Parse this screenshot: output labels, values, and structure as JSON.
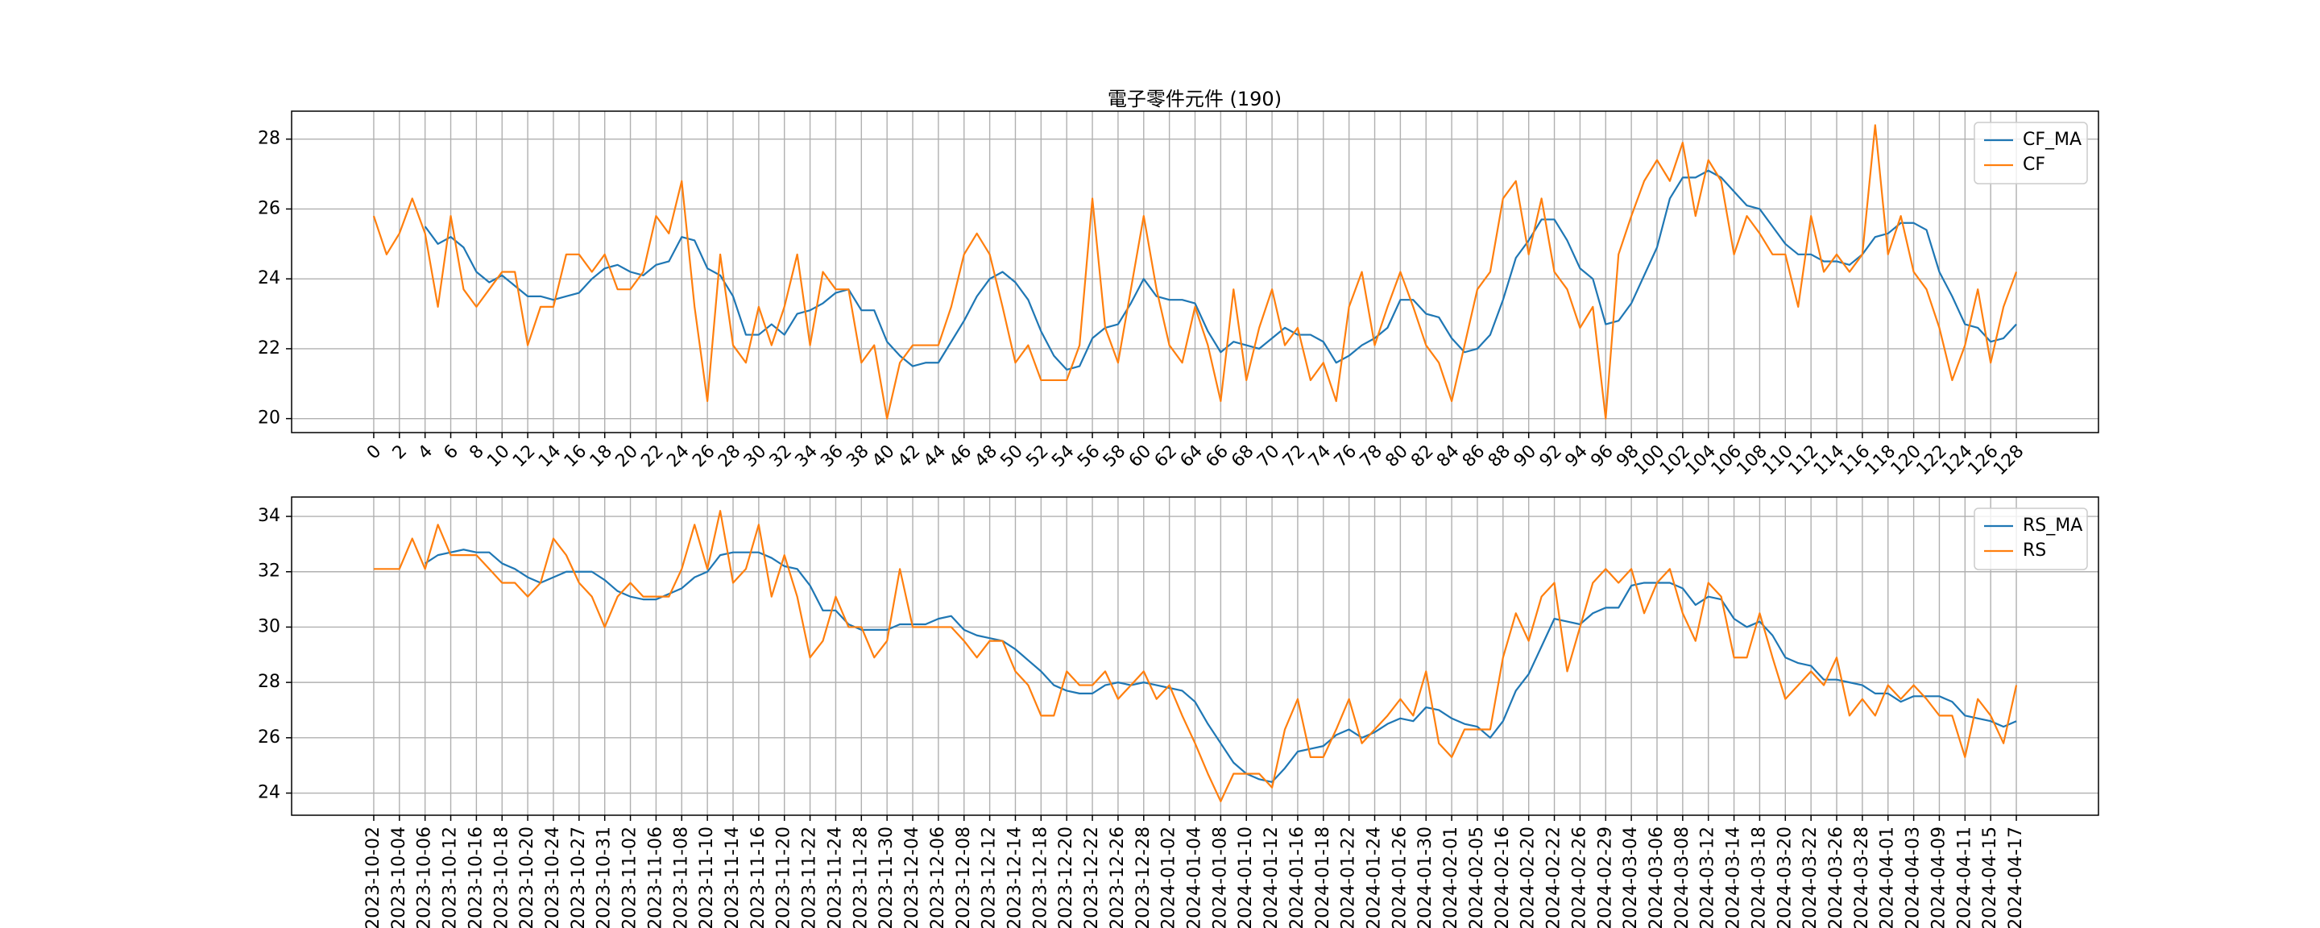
{
  "chart_data": [
    {
      "type": "line",
      "title": "電子零件元件 (190)",
      "x": [
        0,
        1,
        2,
        3,
        4,
        5,
        6,
        7,
        8,
        9,
        10,
        11,
        12,
        13,
        14,
        15,
        16,
        17,
        18,
        19,
        20,
        21,
        22,
        23,
        24,
        25,
        26,
        27,
        28,
        29,
        30,
        31,
        32,
        33,
        34,
        35,
        36,
        37,
        38,
        39,
        40,
        41,
        42,
        43,
        44,
        45,
        46,
        47,
        48,
        49,
        50,
        51,
        52,
        53,
        54,
        55,
        56,
        57,
        58,
        59,
        60,
        61,
        62,
        63,
        64,
        65,
        66,
        67,
        68,
        69,
        70,
        71,
        72,
        73,
        74,
        75,
        76,
        77,
        78,
        79,
        80,
        81,
        82,
        83,
        84,
        85,
        86,
        87,
        88,
        89,
        90,
        91,
        92,
        93,
        94,
        95,
        96,
        97,
        98,
        99,
        100,
        101,
        102,
        103,
        104,
        105,
        106,
        107,
        108,
        109,
        110,
        111,
        112,
        113,
        114,
        115,
        116,
        117,
        118,
        119,
        120,
        121,
        122,
        123,
        124,
        125,
        126,
        127,
        128
      ],
      "xlim": [
        -6.4,
        134.4
      ],
      "xticks": [
        0,
        2,
        4,
        6,
        8,
        10,
        12,
        14,
        16,
        18,
        20,
        22,
        24,
        26,
        28,
        30,
        32,
        34,
        36,
        38,
        40,
        42,
        44,
        46,
        48,
        50,
        52,
        54,
        56,
        58,
        60,
        62,
        64,
        66,
        68,
        70,
        72,
        74,
        76,
        78,
        80,
        82,
        84,
        86,
        88,
        90,
        92,
        94,
        96,
        98,
        100,
        102,
        104,
        106,
        108,
        110,
        112,
        114,
        116,
        118,
        120,
        122,
        124,
        126,
        128
      ],
      "ylim": [
        19.6,
        28.8
      ],
      "yticks": [
        20,
        22,
        24,
        26,
        28
      ],
      "grid": true,
      "legend": "upper right",
      "series": [
        {
          "name": "CF_MA",
          "color": "#1f77b4",
          "values": [
            null,
            null,
            null,
            null,
            25.5,
            25.0,
            25.2,
            24.9,
            24.2,
            23.9,
            24.1,
            23.8,
            23.5,
            23.5,
            23.4,
            23.5,
            23.6,
            24.0,
            24.3,
            24.4,
            24.2,
            24.1,
            24.4,
            24.5,
            25.2,
            25.1,
            24.3,
            24.1,
            23.5,
            22.4,
            22.4,
            22.7,
            22.4,
            23.0,
            23.1,
            23.3,
            23.6,
            23.7,
            23.1,
            23.1,
            22.2,
            21.8,
            21.5,
            21.6,
            21.6,
            22.2,
            22.8,
            23.5,
            24.0,
            24.2,
            23.9,
            23.4,
            22.5,
            21.8,
            21.4,
            21.5,
            22.3,
            22.6,
            22.7,
            23.3,
            24.0,
            23.5,
            23.4,
            23.4,
            23.3,
            22.5,
            21.9,
            22.2,
            22.1,
            22.0,
            22.3,
            22.6,
            22.4,
            22.4,
            22.2,
            21.6,
            21.8,
            22.1,
            22.3,
            22.6,
            23.4,
            23.4,
            23.0,
            22.9,
            22.3,
            21.9,
            22.0,
            22.4,
            23.4,
            24.6,
            25.1,
            25.7,
            25.7,
            25.1,
            24.3,
            24.0,
            22.7,
            22.8,
            23.3,
            24.1,
            24.9,
            26.3,
            26.9,
            26.9,
            27.1,
            26.9,
            26.5,
            26.1,
            26.0,
            25.5,
            25.0,
            24.7,
            24.7,
            24.5,
            24.5,
            24.4,
            24.7,
            25.2,
            25.3,
            25.6,
            25.6,
            25.4,
            24.2,
            23.5,
            22.7,
            22.6,
            22.2,
            22.3,
            22.7
          ]
        },
        {
          "name": "CF",
          "color": "#ff7f0e",
          "values": [
            25.8,
            24.7,
            25.3,
            26.3,
            25.3,
            23.2,
            25.8,
            23.7,
            23.2,
            23.7,
            24.2,
            24.2,
            22.1,
            23.2,
            23.2,
            24.7,
            24.7,
            24.2,
            24.7,
            23.7,
            23.7,
            24.2,
            25.8,
            25.3,
            26.8,
            23.2,
            20.5,
            24.7,
            22.1,
            21.6,
            23.2,
            22.1,
            23.2,
            24.7,
            22.1,
            24.2,
            23.7,
            23.7,
            21.6,
            22.1,
            20.0,
            21.6,
            22.1,
            22.1,
            22.1,
            23.2,
            24.7,
            25.3,
            24.7,
            23.2,
            21.6,
            22.1,
            21.1,
            21.1,
            21.1,
            22.1,
            26.3,
            22.6,
            21.6,
            23.7,
            25.8,
            23.7,
            22.1,
            21.6,
            23.2,
            22.1,
            20.5,
            23.7,
            21.1,
            22.6,
            23.7,
            22.1,
            22.6,
            21.1,
            21.6,
            20.5,
            23.2,
            24.2,
            22.1,
            23.2,
            24.2,
            23.2,
            22.1,
            21.6,
            20.5,
            22.1,
            23.7,
            24.2,
            26.3,
            26.8,
            24.7,
            26.3,
            24.2,
            23.7,
            22.6,
            23.2,
            20.0,
            24.7,
            25.8,
            26.8,
            27.4,
            26.8,
            27.9,
            25.8,
            27.4,
            26.8,
            24.7,
            25.8,
            25.3,
            24.7,
            24.7,
            23.2,
            25.8,
            24.2,
            24.7,
            24.2,
            24.7,
            28.4,
            24.7,
            25.8,
            24.2,
            23.7,
            22.6,
            21.1,
            22.1,
            23.7,
            21.6,
            23.2,
            24.2
          ]
        }
      ]
    },
    {
      "type": "line",
      "categories": [
        "2023-10-02",
        null,
        "2023-10-04",
        null,
        "2023-10-06",
        null,
        "2023-10-12",
        null,
        "2023-10-16",
        null,
        "2023-10-18",
        null,
        "2023-10-20",
        null,
        "2023-10-24",
        null,
        "2023-10-27",
        null,
        "2023-10-31",
        null,
        "2023-11-02",
        null,
        "2023-11-06",
        null,
        "2023-11-08",
        null,
        "2023-11-10",
        null,
        "2023-11-14",
        null,
        "2023-11-16",
        null,
        "2023-11-20",
        null,
        "2023-11-22",
        null,
        "2023-11-24",
        null,
        "2023-11-28",
        null,
        "2023-11-30",
        null,
        "2023-12-04",
        null,
        "2023-12-06",
        null,
        "2023-12-08",
        null,
        "2023-12-12",
        null,
        "2023-12-14",
        null,
        "2023-12-18",
        null,
        "2023-12-20",
        null,
        "2023-12-22",
        null,
        "2023-12-26",
        null,
        "2023-12-28",
        null,
        "2024-01-02",
        null,
        "2024-01-04",
        null,
        "2024-01-08",
        null,
        "2024-01-10",
        null,
        "2024-01-12",
        null,
        "2024-01-16",
        null,
        "2024-01-18",
        null,
        "2024-01-22",
        null,
        "2024-01-24",
        null,
        "2024-01-26",
        null,
        "2024-01-30",
        null,
        "2024-02-01",
        null,
        "2024-02-05",
        null,
        "2024-02-16",
        null,
        "2024-02-20",
        null,
        "2024-02-22",
        null,
        "2024-02-26",
        null,
        "2024-02-29",
        null,
        "2024-03-04",
        null,
        "2024-03-06",
        null,
        "2024-03-08",
        null,
        "2024-03-12",
        null,
        "2024-03-14",
        null,
        "2024-03-18",
        null,
        "2024-03-20",
        null,
        "2024-03-22",
        null,
        "2024-03-26",
        null,
        "2024-03-28",
        null,
        "2024-04-01",
        null,
        "2024-04-03",
        null,
        "2024-04-09",
        null,
        "2024-04-11",
        null,
        "2024-04-15",
        null,
        "2024-04-17"
      ],
      "ylim": [
        23.2,
        34.7
      ],
      "yticks": [
        24,
        26,
        28,
        30,
        32,
        34
      ],
      "grid": true,
      "legend": "upper right",
      "series": [
        {
          "name": "RS_MA",
          "color": "#1f77b4",
          "values": [
            null,
            null,
            null,
            null,
            32.3,
            32.6,
            32.7,
            32.8,
            32.7,
            32.7,
            32.3,
            32.1,
            31.8,
            31.6,
            31.8,
            32.0,
            32.0,
            32.0,
            31.7,
            31.3,
            31.1,
            31.0,
            31.0,
            31.2,
            31.4,
            31.8,
            32.0,
            32.6,
            32.7,
            32.7,
            32.7,
            32.5,
            32.2,
            32.1,
            31.5,
            30.6,
            30.6,
            30.1,
            29.9,
            29.9,
            29.9,
            30.1,
            30.1,
            30.1,
            30.3,
            30.4,
            29.9,
            29.7,
            29.6,
            29.5,
            29.2,
            28.8,
            28.4,
            27.9,
            27.7,
            27.6,
            27.6,
            27.9,
            28.0,
            27.9,
            28.0,
            27.9,
            27.8,
            27.7,
            27.3,
            26.5,
            25.8,
            25.1,
            24.7,
            24.5,
            24.4,
            24.9,
            25.5,
            25.6,
            25.7,
            26.1,
            26.3,
            26.0,
            26.2,
            26.5,
            26.7,
            26.6,
            27.1,
            27.0,
            26.7,
            26.5,
            26.4,
            26.0,
            26.6,
            27.7,
            28.3,
            29.3,
            30.3,
            30.2,
            30.1,
            30.5,
            30.7,
            30.7,
            31.5,
            31.6,
            31.6,
            31.6,
            31.4,
            30.8,
            31.1,
            31.0,
            30.3,
            30.0,
            30.2,
            29.7,
            28.9,
            28.7,
            28.6,
            28.1,
            28.1,
            28.0,
            27.9,
            27.6,
            27.6,
            27.3,
            27.5,
            27.5,
            27.5,
            27.3,
            26.8,
            26.7,
            26.6,
            26.4,
            26.6
          ]
        },
        {
          "name": "RS",
          "color": "#ff7f0e",
          "values": [
            32.1,
            32.1,
            32.1,
            33.2,
            32.1,
            33.7,
            32.6,
            32.6,
            32.6,
            32.1,
            31.6,
            31.6,
            31.1,
            31.6,
            33.2,
            32.6,
            31.6,
            31.1,
            30.0,
            31.1,
            31.6,
            31.1,
            31.1,
            31.1,
            32.1,
            33.7,
            32.1,
            34.2,
            31.6,
            32.1,
            33.7,
            31.1,
            32.6,
            31.1,
            28.9,
            29.5,
            31.1,
            30.0,
            30.0,
            28.9,
            29.5,
            32.1,
            30.0,
            30.0,
            30.0,
            30.0,
            29.5,
            28.9,
            29.5,
            29.5,
            28.4,
            27.9,
            26.8,
            26.8,
            28.4,
            27.9,
            27.9,
            28.4,
            27.4,
            27.9,
            28.4,
            27.4,
            27.9,
            26.8,
            25.8,
            24.7,
            23.7,
            24.7,
            24.7,
            24.7,
            24.2,
            26.3,
            27.4,
            25.3,
            25.3,
            26.3,
            27.4,
            25.8,
            26.3,
            26.8,
            27.4,
            26.8,
            28.4,
            25.8,
            25.3,
            26.3,
            26.3,
            26.3,
            28.9,
            30.5,
            29.5,
            31.1,
            31.6,
            28.4,
            30.0,
            31.6,
            32.1,
            31.6,
            32.1,
            30.5,
            31.6,
            32.1,
            30.5,
            29.5,
            31.6,
            31.1,
            28.9,
            28.9,
            30.5,
            28.9,
            27.4,
            27.9,
            28.4,
            27.9,
            28.9,
            26.8,
            27.4,
            26.8,
            27.9,
            27.4,
            27.9,
            27.4,
            26.8,
            26.8,
            25.3,
            27.4,
            26.8,
            25.8,
            27.9
          ]
        }
      ]
    }
  ]
}
